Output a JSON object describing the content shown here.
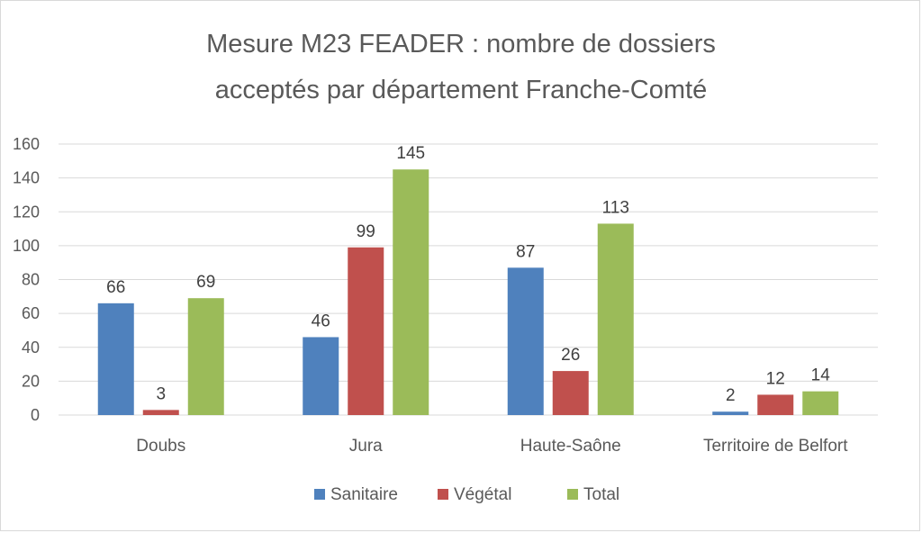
{
  "chart_data": {
    "type": "bar",
    "title_lines": [
      "Mesure M23  FEADER  : nombre de dossiers",
      "acceptés par département  Franche-Comté"
    ],
    "categories": [
      "Doubs",
      "Jura",
      "Haute-Saône",
      "Territoire de Belfort"
    ],
    "series": [
      {
        "name": "Sanitaire",
        "color": "#4f81bd",
        "values": [
          66,
          46,
          87,
          2
        ]
      },
      {
        "name": "Végétal",
        "color": "#c0504d",
        "values": [
          3,
          99,
          26,
          12
        ]
      },
      {
        "name": "Total",
        "color": "#9bbb59",
        "values": [
          69,
          145,
          113,
          14
        ]
      }
    ],
    "ylim": [
      0,
      160
    ],
    "yticks": [
      0,
      20,
      40,
      60,
      80,
      100,
      120,
      140,
      160
    ],
    "grid": true,
    "legend_position": "bottom",
    "data_labels": true
  }
}
